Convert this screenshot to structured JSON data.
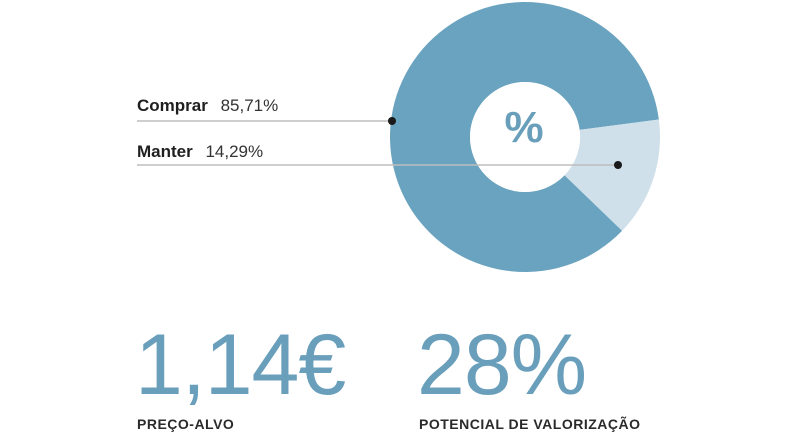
{
  "chart_data": {
    "type": "pie",
    "slices": [
      {
        "label": "Comprar",
        "value": 85.71,
        "value_text": "85,71%",
        "color": "#6aa3bf"
      },
      {
        "label": "Manter",
        "value": 14.29,
        "value_text": "14,29%",
        "color": "#cfe0ea"
      }
    ],
    "center_symbol": "%"
  },
  "stats": [
    {
      "value": "1,14€",
      "label": "PREÇO-ALVO"
    },
    {
      "value": "28%",
      "label": "POTENCIAL DE VALORIZAÇÃO"
    }
  ],
  "colors": {
    "accent": "#6a9fbc",
    "leader_line": "#bdbdbd"
  }
}
